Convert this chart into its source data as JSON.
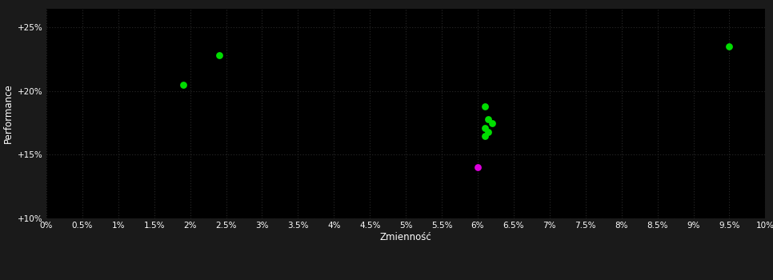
{
  "background_color": "#1a1a1a",
  "plot_bg_color": "#000000",
  "grid_color": "#2a2a2a",
  "xlabel": "Zmienność",
  "ylabel": "Performance",
  "xlabel_color": "#ffffff",
  "ylabel_color": "#ffffff",
  "tick_color": "#ffffff",
  "xlim": [
    0.0,
    0.1
  ],
  "ylim": [
    0.1,
    0.265
  ],
  "xtick_values": [
    0.0,
    0.005,
    0.01,
    0.015,
    0.02,
    0.025,
    0.03,
    0.035,
    0.04,
    0.045,
    0.05,
    0.055,
    0.06,
    0.065,
    0.07,
    0.075,
    0.08,
    0.085,
    0.09,
    0.095,
    0.1
  ],
  "xtick_labels": [
    "0%",
    "0.5%",
    "1%",
    "1.5%",
    "2%",
    "2.5%",
    "3%",
    "3.5%",
    "4%",
    "4.5%",
    "5%",
    "5.5%",
    "6%",
    "6.5%",
    "7%",
    "7.5%",
    "8%",
    "8.5%",
    "9%",
    "9.5%",
    "10%"
  ],
  "ytick_values": [
    0.1,
    0.15,
    0.2,
    0.25
  ],
  "ytick_labels": [
    "+10%",
    "+15%",
    "+20%",
    "+25%"
  ],
  "green_points": [
    [
      0.019,
      0.205
    ],
    [
      0.024,
      0.228
    ],
    [
      0.061,
      0.188
    ],
    [
      0.0615,
      0.178
    ],
    [
      0.062,
      0.175
    ],
    [
      0.061,
      0.171
    ],
    [
      0.0615,
      0.168
    ],
    [
      0.061,
      0.165
    ],
    [
      0.095,
      0.235
    ]
  ],
  "pink_points": [
    [
      0.06,
      0.14
    ]
  ],
  "green_color": "#00dd00",
  "pink_color": "#dd00dd",
  "point_size": 40,
  "font_size_ticks": 7.5,
  "font_size_labels": 8.5,
  "font_size_ylabel": 8.5
}
